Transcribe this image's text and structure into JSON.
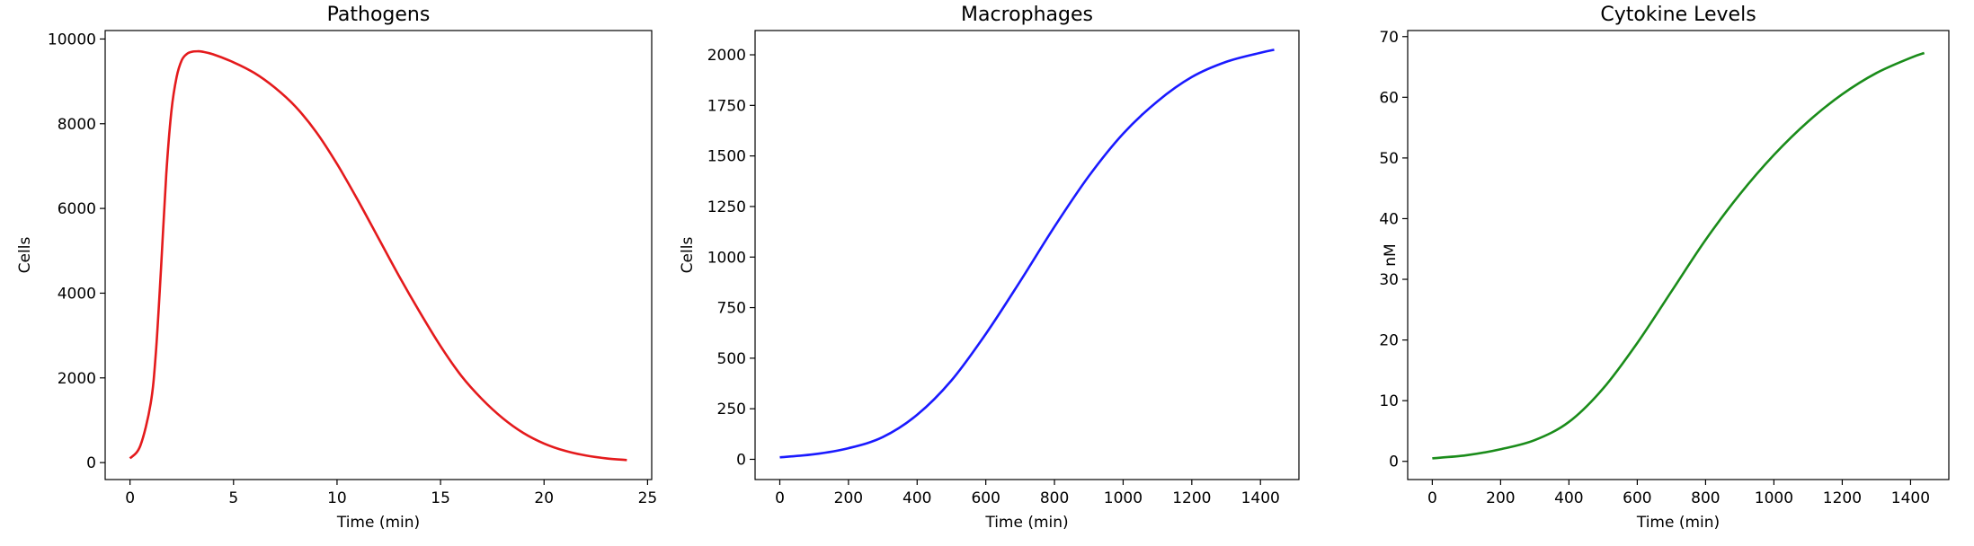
{
  "chart_data": [
    {
      "type": "line",
      "title": "Pathogens",
      "xlabel": "Time (min)",
      "ylabel": "Cells",
      "xlim": [
        -1.2,
        25.2
      ],
      "ylim": [
        -400,
        10200
      ],
      "xticks": [
        0,
        5,
        10,
        15,
        20,
        25
      ],
      "yticks": [
        0,
        2000,
        4000,
        6000,
        8000,
        10000
      ],
      "grid": false,
      "color": "#e41a1c",
      "x": [
        0,
        0.5,
        1,
        1.25,
        1.5,
        1.75,
        2,
        2.25,
        2.5,
        2.75,
        3,
        3.25,
        3.5,
        4,
        5,
        6,
        7,
        8,
        9,
        10,
        11,
        12,
        13,
        14,
        15,
        16,
        17,
        18,
        19,
        20,
        21,
        22,
        23,
        24
      ],
      "y": [
        100,
        400,
        1400,
        2600,
        4600,
        6800,
        8300,
        9100,
        9500,
        9650,
        9700,
        9710,
        9700,
        9640,
        9450,
        9200,
        8850,
        8400,
        7800,
        7050,
        6200,
        5300,
        4400,
        3550,
        2750,
        2050,
        1500,
        1050,
        700,
        450,
        280,
        170,
        100,
        60
      ]
    },
    {
      "type": "line",
      "title": "Macrophages",
      "xlabel": "Time (min)",
      "ylabel": "Cells",
      "xlim": [
        -72,
        1512
      ],
      "ylim": [
        -100,
        2120
      ],
      "xticks": [
        0,
        200,
        400,
        600,
        800,
        1000,
        1200,
        1400
      ],
      "yticks": [
        0,
        250,
        500,
        750,
        1000,
        1250,
        1500,
        1750,
        2000
      ],
      "grid": false,
      "color": "#1a1aff",
      "x": [
        0,
        100,
        200,
        300,
        400,
        500,
        600,
        700,
        800,
        900,
        1000,
        1100,
        1200,
        1300,
        1400,
        1440
      ],
      "y": [
        10,
        25,
        55,
        110,
        220,
        390,
        620,
        880,
        1150,
        1400,
        1610,
        1770,
        1890,
        1965,
        2010,
        2025
      ]
    },
    {
      "type": "line",
      "title": "Cytokine Levels",
      "xlabel": "Time (min)",
      "ylabel": "nM",
      "xlim": [
        -72,
        1512
      ],
      "ylim": [
        -3,
        71
      ],
      "xticks": [
        0,
        200,
        400,
        600,
        800,
        1000,
        1200,
        1400
      ],
      "yticks": [
        0,
        10,
        20,
        30,
        40,
        50,
        60,
        70
      ],
      "grid": false,
      "color": "#1a8c1a",
      "x": [
        0,
        100,
        200,
        300,
        400,
        500,
        600,
        700,
        800,
        900,
        1000,
        1100,
        1200,
        1300,
        1400,
        1440
      ],
      "y": [
        0.5,
        1,
        2,
        3.5,
        6.5,
        12,
        19.5,
        28,
        36.5,
        44,
        50.5,
        56,
        60.5,
        64,
        66.5,
        67.3
      ]
    }
  ]
}
